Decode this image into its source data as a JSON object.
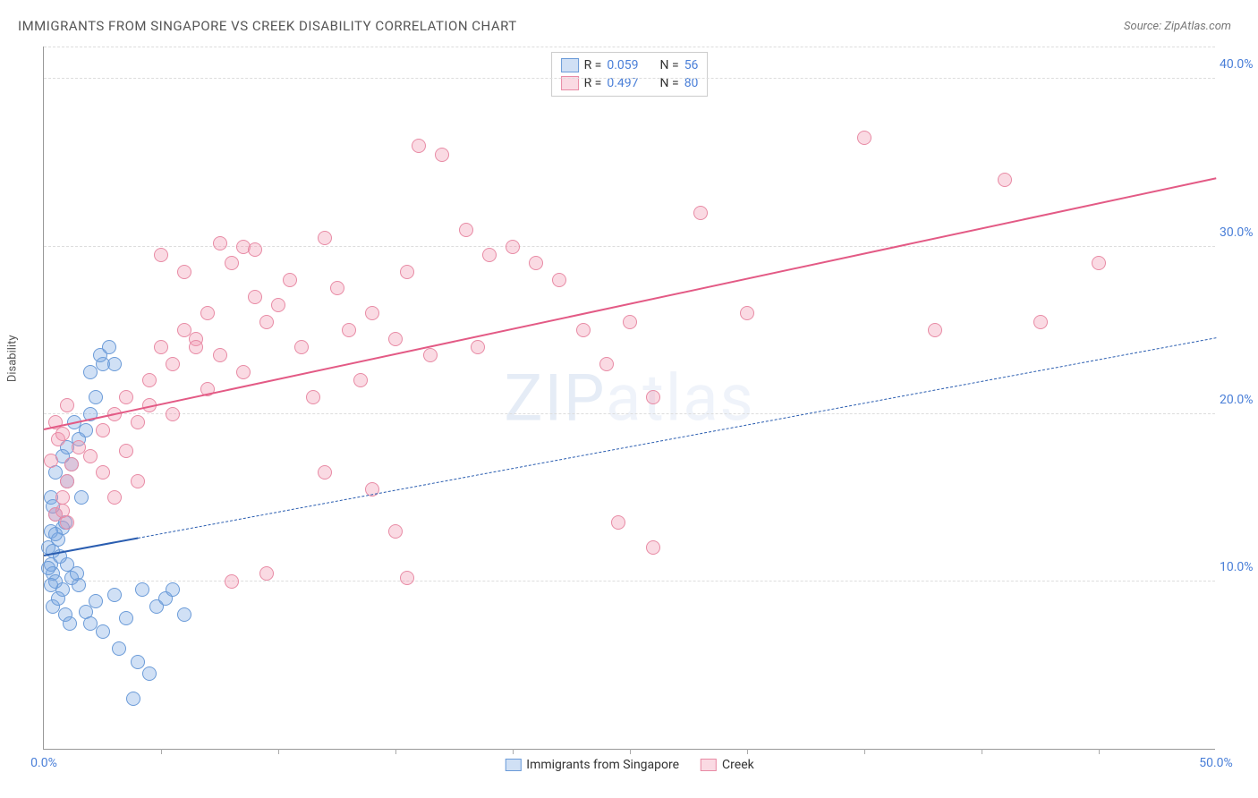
{
  "title": "IMMIGRANTS FROM SINGAPORE VS CREEK DISABILITY CORRELATION CHART",
  "source": "Source: ZipAtlas.com",
  "ylabel": "Disability",
  "watermark": {
    "bold": "ZIP",
    "light": "atlas"
  },
  "chart": {
    "type": "scatter",
    "xlim": [
      0,
      50
    ],
    "ylim": [
      0,
      42
    ],
    "xtick_labels": [
      "0.0%",
      "50.0%"
    ],
    "xtick_positions": [
      0,
      50
    ],
    "ytick_labels": [
      "10.0%",
      "20.0%",
      "30.0%",
      "40.0%"
    ],
    "ytick_positions": [
      10,
      20,
      30,
      40
    ],
    "x_minor_ticks": [
      5,
      10,
      15,
      20,
      25,
      30,
      35,
      40,
      45
    ],
    "grid_color": "#dddddd",
    "background_color": "#ffffff",
    "axis_color": "#999999",
    "marker_radius": 8,
    "marker_stroke_width": 1.5,
    "series": [
      {
        "name": "Immigrants from Singapore",
        "fill_color": "rgba(120,165,225,0.35)",
        "stroke_color": "#6b9bd8",
        "r_value": "0.059",
        "n_value": "56",
        "trendline": {
          "x1": 0,
          "y1": 11.5,
          "x2": 50,
          "y2": 24.5,
          "color": "#2a5db0",
          "width": 2,
          "solid_until_x": 4,
          "dash": "6,5"
        },
        "points": [
          [
            0.2,
            12
          ],
          [
            0.3,
            11
          ],
          [
            0.4,
            10.5
          ],
          [
            0.5,
            10
          ],
          [
            0.3,
            13
          ],
          [
            0.6,
            12.5
          ],
          [
            0.4,
            11.8
          ],
          [
            0.5,
            14
          ],
          [
            0.8,
            13.2
          ],
          [
            0.3,
            15
          ],
          [
            1.0,
            11
          ],
          [
            1.2,
            10.2
          ],
          [
            0.8,
            9.5
          ],
          [
            1.5,
            9.8
          ],
          [
            1.8,
            8.2
          ],
          [
            2.0,
            7.5
          ],
          [
            2.2,
            8.8
          ],
          [
            2.5,
            7.0
          ],
          [
            3.0,
            9.2
          ],
          [
            3.2,
            6.0
          ],
          [
            3.5,
            7.8
          ],
          [
            4.0,
            5.2
          ],
          [
            4.2,
            9.5
          ],
          [
            4.8,
            8.5
          ],
          [
            5.2,
            9.0
          ],
          [
            6.0,
            8.0
          ],
          [
            1.0,
            16
          ],
          [
            1.2,
            17
          ],
          [
            1.5,
            18.5
          ],
          [
            2.0,
            20
          ],
          [
            1.8,
            19
          ],
          [
            2.2,
            21
          ],
          [
            2.5,
            23
          ],
          [
            2.8,
            24
          ],
          [
            2.0,
            22.5
          ],
          [
            2.4,
            23.5
          ],
          [
            0.5,
            16.5
          ],
          [
            0.8,
            17.5
          ],
          [
            1.0,
            18
          ],
          [
            1.3,
            19.5
          ],
          [
            0.4,
            8.5
          ],
          [
            0.6,
            9.0
          ],
          [
            0.9,
            8.0
          ],
          [
            1.1,
            7.5
          ],
          [
            1.4,
            10.5
          ],
          [
            0.7,
            11.5
          ],
          [
            0.2,
            10.8
          ],
          [
            0.3,
            9.8
          ],
          [
            4.5,
            4.5
          ],
          [
            3.8,
            3.0
          ],
          [
            5.5,
            9.5
          ],
          [
            3.0,
            23
          ],
          [
            1.6,
            15
          ],
          [
            0.9,
            13.5
          ],
          [
            0.5,
            12.8
          ],
          [
            0.4,
            14.5
          ]
        ]
      },
      {
        "name": "Creek",
        "fill_color": "rgba(240,150,175,0.35)",
        "stroke_color": "#e88ba5",
        "r_value": "0.497",
        "n_value": "80",
        "trendline": {
          "x1": 0,
          "y1": 19.0,
          "x2": 50,
          "y2": 34.0,
          "color": "#e35a85",
          "width": 2.5,
          "solid_until_x": 50,
          "dash": null
        },
        "points": [
          [
            0.5,
            14
          ],
          [
            0.8,
            15
          ],
          [
            1.0,
            13.5
          ],
          [
            1.2,
            17
          ],
          [
            1.5,
            18
          ],
          [
            1.0,
            16
          ],
          [
            2.0,
            17.5
          ],
          [
            0.6,
            18.5
          ],
          [
            0.3,
            17.2
          ],
          [
            0.8,
            18.8
          ],
          [
            2.5,
            19
          ],
          [
            3.0,
            20
          ],
          [
            3.5,
            21
          ],
          [
            4.0,
            19.5
          ],
          [
            4.5,
            22
          ],
          [
            5.0,
            24
          ],
          [
            5.5,
            23
          ],
          [
            6.0,
            25
          ],
          [
            6.5,
            24.5
          ],
          [
            7.0,
            26
          ],
          [
            7.5,
            23.5
          ],
          [
            8.0,
            29
          ],
          [
            8.5,
            30
          ],
          [
            9.0,
            27
          ],
          [
            9.5,
            25.5
          ],
          [
            10.0,
            26.5
          ],
          [
            10.5,
            28
          ],
          [
            11.0,
            24
          ],
          [
            12.0,
            30.5
          ],
          [
            12.5,
            27.5
          ],
          [
            13.0,
            25
          ],
          [
            14.0,
            26
          ],
          [
            15.0,
            24.5
          ],
          [
            15.5,
            28.5
          ],
          [
            16.0,
            36
          ],
          [
            17.0,
            35.5
          ],
          [
            18.0,
            31
          ],
          [
            18.5,
            24
          ],
          [
            19.0,
            29.5
          ],
          [
            20.0,
            30
          ],
          [
            21.0,
            29
          ],
          [
            22.0,
            28
          ],
          [
            23.0,
            25
          ],
          [
            24.0,
            23
          ],
          [
            25.0,
            25.5
          ],
          [
            26.0,
            21
          ],
          [
            28.0,
            32
          ],
          [
            30.0,
            26
          ],
          [
            24.5,
            13.5
          ],
          [
            26.0,
            12
          ],
          [
            15.0,
            13
          ],
          [
            14.0,
            15.5
          ],
          [
            8.0,
            10
          ],
          [
            9.5,
            10.5
          ],
          [
            15.5,
            10.2
          ],
          [
            35.0,
            36.5
          ],
          [
            38.0,
            25
          ],
          [
            41.0,
            34
          ],
          [
            45.0,
            29
          ],
          [
            42.5,
            25.5
          ],
          [
            6.5,
            24
          ],
          [
            5.5,
            20
          ],
          [
            4.0,
            16
          ],
          [
            3.0,
            15
          ],
          [
            2.5,
            16.5
          ],
          [
            3.5,
            17.8
          ],
          [
            4.5,
            20.5
          ],
          [
            7.0,
            21.5
          ],
          [
            8.5,
            22.5
          ],
          [
            11.5,
            21
          ],
          [
            13.5,
            22
          ],
          [
            16.5,
            23.5
          ],
          [
            6.0,
            28.5
          ],
          [
            5.0,
            29.5
          ],
          [
            7.5,
            30.2
          ],
          [
            9.0,
            29.8
          ],
          [
            12.0,
            16.5
          ],
          [
            0.5,
            19.5
          ],
          [
            1.0,
            20.5
          ],
          [
            0.8,
            14.2
          ]
        ]
      }
    ]
  },
  "legend": {
    "border_color": "#cccccc",
    "r_label": "R =",
    "n_label": "N =",
    "value_color": "#4a7fd8",
    "label_color": "#333333"
  },
  "bottom_legend": {
    "items": [
      {
        "label": "Immigrants from Singapore",
        "fill": "rgba(120,165,225,0.35)",
        "stroke": "#6b9bd8"
      },
      {
        "label": "Creek",
        "fill": "rgba(240,150,175,0.35)",
        "stroke": "#e88ba5"
      }
    ]
  }
}
